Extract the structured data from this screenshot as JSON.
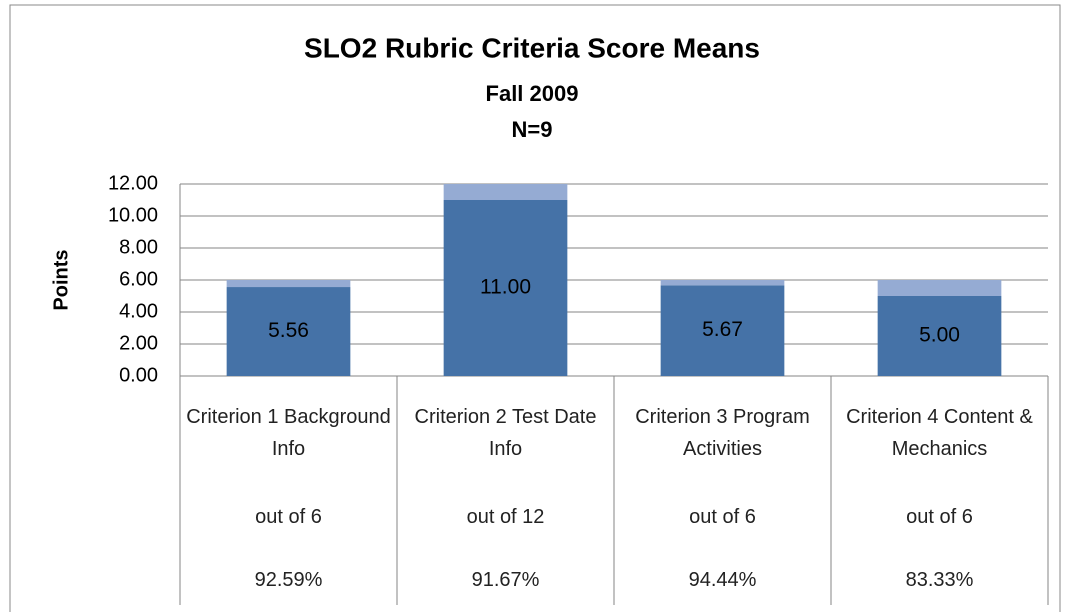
{
  "chart_data": {
    "type": "stacked_bar",
    "title": "SLO2 Rubric Criteria Score Means",
    "subtitle": "Fall 2009",
    "note": "N=9",
    "y_label": "Points",
    "categories": [
      "Criterion 1 Background Info",
      "Criterion 2 Test Date Info",
      "Criterion 3 Program Activities",
      "Criterion 4 Content & Mechanics"
    ],
    "category_notes": [
      "out of 6",
      "out of 12",
      "out of 6",
      "out of 6"
    ],
    "percentages": [
      92.59,
      91.67,
      94.44,
      83.33
    ],
    "percentage_labels": [
      "92.59%",
      "91.67%",
      "94.44%",
      "83.33%"
    ],
    "series": [
      {
        "color": "#4572a7",
        "values": [
          5.56,
          11,
          5.67,
          5
        ],
        "value_labels": [
          "5.56",
          "11.00",
          "5.67",
          "5.00"
        ]
      },
      {
        "color": "#95abd3",
        "values": [
          0.44,
          1,
          0.33,
          1
        ]
      }
    ],
    "ylim": [
      0,
      12
    ],
    "yticks": [
      {
        "value": 0,
        "label": "0.00"
      },
      {
        "value": 2,
        "label": "2.00"
      },
      {
        "value": 4,
        "label": "4.00"
      },
      {
        "value": 6,
        "label": "6.00"
      },
      {
        "value": 8,
        "label": "8.00"
      },
      {
        "value": 10,
        "label": "10.00"
      },
      {
        "value": 12,
        "label": "12.00"
      }
    ],
    "grid": true
  }
}
